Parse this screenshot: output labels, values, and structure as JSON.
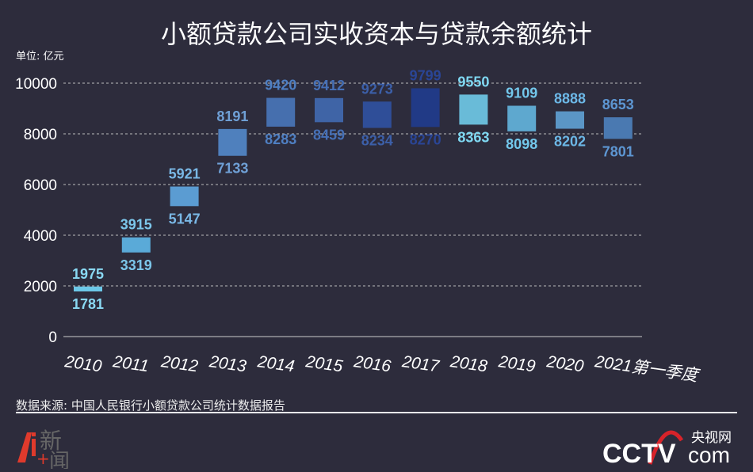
{
  "title": "小额贷款公司实收资本与贷款余额统计",
  "unit": "单位: 亿元",
  "source": "数据来源: 中国人民银行小额贷款公司统计数据报告",
  "logos": {
    "left": "Ai新闻",
    "right_cn": "央视网",
    "right_en": "CCTV.com"
  },
  "chart_data": {
    "type": "bar",
    "subtype": "floating-range",
    "title": "小额贷款公司实收资本与贷款余额统计",
    "ylabel": "单位: 亿元",
    "ylim": [
      0,
      10000
    ],
    "yticks": [
      0,
      2000,
      4000,
      6000,
      8000,
      10000
    ],
    "grid": true,
    "categories": [
      "2010",
      "2011",
      "2012",
      "2013",
      "2014",
      "2015",
      "2016",
      "2017",
      "2018",
      "2019",
      "2020",
      "2021第一季度"
    ],
    "lower": [
      1781,
      3319,
      5147,
      7133,
      8283,
      8459,
      8234,
      8270,
      8363,
      8098,
      8202,
      7801
    ],
    "upper": [
      1975,
      3915,
      5921,
      8191,
      9420,
      9412,
      9273,
      9799,
      9550,
      9109,
      8888,
      8653
    ],
    "colors": [
      "#6cc8e8",
      "#5aaad8",
      "#5b9cd2",
      "#4f80bd",
      "#466fae",
      "#3f64a6",
      "#2f4e98",
      "#213a86",
      "#69bbd8",
      "#5ea8cf",
      "#5b96c6",
      "#4a79b1"
    ],
    "label_colors": [
      "#8ad9f3",
      "#7cc6ea",
      "#7ab8e6",
      "#6fa0d6",
      "#4f7fc2",
      "#4670b6",
      "#3c5fa8",
      "#2a4595",
      "#7fd8f2",
      "#73c8ec",
      "#6cb7e6",
      "#5d96d2"
    ]
  }
}
